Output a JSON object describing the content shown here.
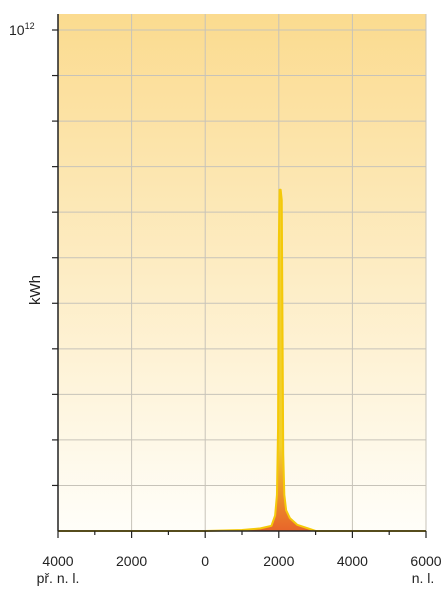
{
  "chart_data": {
    "type": "area",
    "title": "",
    "xlabel": "",
    "ylabel": "kWh",
    "y_top_label": {
      "base": "10",
      "exp": "12"
    },
    "x_ticks": [
      "4000",
      "2000",
      "0",
      "2000",
      "4000",
      "6000"
    ],
    "x_tick_values": [
      -4000,
      -2000,
      0,
      2000,
      4000,
      6000
    ],
    "x_era_labels": {
      "left": "př. n. l.",
      "right": "n. l."
    },
    "xlim": [
      -4000,
      6000
    ],
    "ylim": [
      0,
      1
    ],
    "grid": true,
    "series": [
      {
        "x": [
          -4000,
          0,
          1000,
          1500,
          1800,
          1900,
          1950,
          1980,
          2000,
          2020,
          2050,
          2080,
          2100,
          2120,
          2150,
          2200,
          2300,
          2500,
          2800,
          3000,
          6000
        ],
        "y": [
          0,
          0,
          0.002,
          0.005,
          0.01,
          0.03,
          0.07,
          0.2,
          0.55,
          0.66,
          0.66,
          0.64,
          0.4,
          0.15,
          0.07,
          0.04,
          0.025,
          0.012,
          0.005,
          0,
          0
        ]
      }
    ]
  },
  "colors": {
    "background_top": "#fbdb8f",
    "background_bottom": "#fffef9",
    "grid": "#c7c3b9",
    "axis": "#222222",
    "peak_outline": "#f4c90a",
    "peak_fill_top": "#f2d02b",
    "peak_fill_bottom": "#e8652a"
  }
}
